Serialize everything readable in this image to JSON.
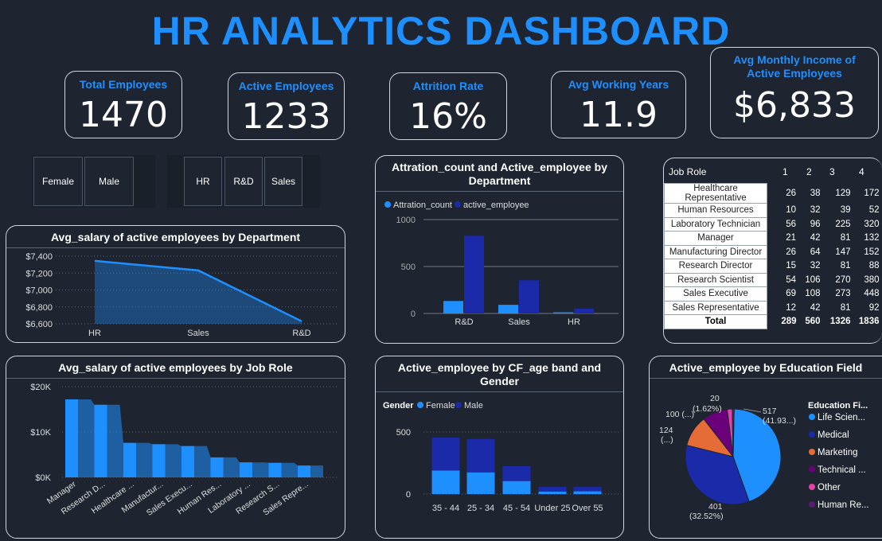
{
  "title": "HR ANALYTICS DASHBOARD",
  "kpis": [
    {
      "label": "Total Employees",
      "value": "1470"
    },
    {
      "label": "Active Employees",
      "value": "1233"
    },
    {
      "label": "Attrition Rate",
      "value": "16%"
    },
    {
      "label": "Avg Working Years",
      "value": "11.9"
    },
    {
      "label": "Avg Monthly Income of Active Employees",
      "value": "$6,833"
    }
  ],
  "gender_slicer": [
    "Female",
    "Male"
  ],
  "dept_slicer": [
    "HR",
    "R&D",
    "Sales"
  ],
  "colors": {
    "accent": "#1e8fff",
    "dark_blue": "#1a2aa8",
    "orange": "#e66c37",
    "purple": "#6b007b",
    "pink": "#e044a7",
    "deep_purple": "#5a1a6e"
  },
  "salary_by_dept": {
    "title": "Avg_salary of active employees by Department",
    "chart_data": {
      "type": "area",
      "categories": [
        "HR",
        "Sales",
        "R&D"
      ],
      "values": [
        7345,
        7232,
        6630
      ],
      "yticks": [
        "$7,400",
        "$7,200",
        "$7,000",
        "$6,800",
        "$6,600"
      ],
      "ylim": [
        6600,
        7400
      ]
    }
  },
  "attrition_dept": {
    "title": "Attration_count and Active_employee by Department",
    "legend": [
      "Attration_count",
      "active_employee"
    ],
    "chart_data": {
      "type": "bar",
      "categories": [
        "R&D",
        "Sales",
        "HR"
      ],
      "series": [
        {
          "name": "Attration_count",
          "values": [
            133,
            92,
            12
          ]
        },
        {
          "name": "active_employee",
          "values": [
            828,
            354,
            51
          ]
        }
      ],
      "yticks": [
        "1000",
        "500",
        "0"
      ],
      "ylim": [
        0,
        1000
      ]
    }
  },
  "job_role_matrix": {
    "header": "Job Role",
    "columns": [
      "1",
      "2",
      "3",
      "4"
    ],
    "rows": [
      {
        "role": "Healthcare Representative",
        "v": [
          "26",
          "38",
          "129",
          "172"
        ]
      },
      {
        "role": "Human Resources",
        "v": [
          "10",
          "32",
          "39",
          "52"
        ]
      },
      {
        "role": "Laboratory Technician",
        "v": [
          "56",
          "96",
          "225",
          "320"
        ]
      },
      {
        "role": "Manager",
        "v": [
          "21",
          "42",
          "81",
          "132"
        ]
      },
      {
        "role": "Manufacturing Director",
        "v": [
          "26",
          "64",
          "147",
          "152"
        ]
      },
      {
        "role": "Research Director",
        "v": [
          "15",
          "32",
          "81",
          "88"
        ]
      },
      {
        "role": "Research Scientist",
        "v": [
          "54",
          "106",
          "270",
          "380"
        ]
      },
      {
        "role": "Sales Executive",
        "v": [
          "69",
          "108",
          "273",
          "448"
        ]
      },
      {
        "role": "Sales Representative",
        "v": [
          "12",
          "42",
          "81",
          "92"
        ]
      }
    ],
    "total": {
      "role": "Total",
      "v": [
        "289",
        "560",
        "1326",
        "1836"
      ]
    }
  },
  "salary_by_role": {
    "title": "Avg_salary of active employees by Job Role",
    "chart_data": {
      "type": "bar",
      "categories": [
        "Manager",
        "Research D...",
        "Healthcare ...",
        "Manufactur...",
        "Sales Execu...",
        "Human Res...",
        "Laboratory ...",
        "Research S...",
        "Sales Repre..."
      ],
      "values": [
        17200,
        16000,
        7600,
        7300,
        6900,
        4400,
        3300,
        3200,
        2600
      ],
      "yticks": [
        "$20K",
        "$10K",
        "$0K"
      ],
      "ylim": [
        0,
        20000
      ]
    }
  },
  "age_band": {
    "title": "Active_employee by CF_age band and Gender",
    "legend_title": "Gender",
    "legend": [
      "Female",
      "Male"
    ],
    "chart_data": {
      "type": "bar",
      "categories": [
        "35 - 44",
        "25 - 34",
        "45 - 54",
        "Under 25",
        "Over 55"
      ],
      "series": [
        {
          "name": "Female",
          "values": [
            190,
            175,
            105,
            20,
            22
          ]
        },
        {
          "name": "Male",
          "values": [
            265,
            268,
            120,
            38,
            35
          ]
        }
      ],
      "yticks": [
        "500",
        "0"
      ],
      "ylim": [
        0,
        500
      ]
    }
  },
  "education": {
    "title": "Active_employee by Education Field",
    "legend_title": "Education Fi...",
    "legend": [
      "Life Scien...",
      "Medical",
      "Marketing",
      "Technical ...",
      "Other",
      "Human Re..."
    ],
    "labels": {
      "life_value": "517",
      "life_pct": "(41.93...)",
      "medical_value": "401",
      "medical_pct": "(32.52%)",
      "marketing_value": "124",
      "marketing_pct": "(...)",
      "technical": "100 (...)",
      "other_value": "20",
      "other_pct": "(1.62%)"
    },
    "chart_data": {
      "type": "pie",
      "categories": [
        "Life Sciences",
        "Medical",
        "Marketing",
        "Technical Degree",
        "Other",
        "Human Resources"
      ],
      "values": [
        517,
        401,
        124,
        100,
        20,
        7
      ]
    }
  }
}
